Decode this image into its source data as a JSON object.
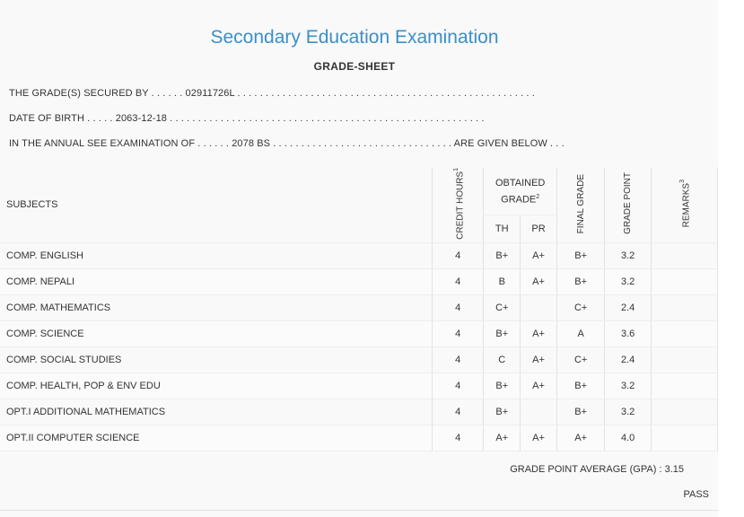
{
  "header": {
    "title": "Secondary Education Examination",
    "subtitle": "GRADE-SHEET"
  },
  "info": {
    "secured_by_label": "THE GRADE(S) SECURED BY . . . . . .",
    "symbol_no": "02911726L",
    "secured_by_dots": ". . . . . . . . . . . . . . . . . . . . . . . . . . . . . . . . . . . . . . . . . . . . . . . . . . . . .",
    "dob_label": "DATE OF BIRTH . . . . .",
    "dob": "2063-12-18",
    "dob_dots": ". . . . . . . . . . . . . . . . . . . . . . . . . . . . . . . . . . . . . . . . . . . . . . . . . . . . . . . .",
    "exam_label": "IN THE ANNUAL SEE EXAMINATION OF . . . . . .",
    "exam_year": "2078 BS",
    "exam_dots": ". . . . . . . . . . . . . . . . . . . . . . . . . . . . . . . . ARE GIVEN BELOW . . ."
  },
  "table": {
    "headers": {
      "subjects": "SUBJECTS",
      "credit_hours": "CREDIT HOURS",
      "credit_sup": "1",
      "obtained_grade": "OBTAINED GRADE",
      "obtained_sup": "2",
      "th": "TH",
      "pr": "PR",
      "final_grade": "FINAL GRADE",
      "grade_point": "GRADE POINT",
      "remarks": "REMARKS",
      "remarks_sup": "3"
    },
    "rows": [
      {
        "subject": "COMP. ENGLISH",
        "credit": "4",
        "th": "B+",
        "pr": "A+",
        "final": "B+",
        "gp": "3.2",
        "remarks": ""
      },
      {
        "subject": "COMP. NEPALI",
        "credit": "4",
        "th": "B",
        "pr": "A+",
        "final": "B+",
        "gp": "3.2",
        "remarks": ""
      },
      {
        "subject": "COMP. MATHEMATICS",
        "credit": "4",
        "th": "C+",
        "pr": "",
        "final": "C+",
        "gp": "2.4",
        "remarks": ""
      },
      {
        "subject": "COMP. SCIENCE",
        "credit": "4",
        "th": "B+",
        "pr": "A+",
        "final": "A",
        "gp": "3.6",
        "remarks": ""
      },
      {
        "subject": "COMP. SOCIAL STUDIES",
        "credit": "4",
        "th": "C",
        "pr": "A+",
        "final": "C+",
        "gp": "2.4",
        "remarks": ""
      },
      {
        "subject": "COMP. HEALTH, POP & ENV EDU",
        "credit": "4",
        "th": "B+",
        "pr": "A+",
        "final": "B+",
        "gp": "3.2",
        "remarks": ""
      },
      {
        "subject": "OPT.I ADDITIONAL MATHEMATICS",
        "credit": "4",
        "th": "B+",
        "pr": "",
        "final": "B+",
        "gp": "3.2",
        "remarks": ""
      },
      {
        "subject": "OPT.II COMPUTER SCIENCE",
        "credit": "4",
        "th": "A+",
        "pr": "A+",
        "final": "A+",
        "gp": "4.0",
        "remarks": ""
      }
    ]
  },
  "footer": {
    "gpa_label": "GRADE POINT AVERAGE (GPA) :",
    "gpa": "3.15",
    "result": "PASS"
  }
}
